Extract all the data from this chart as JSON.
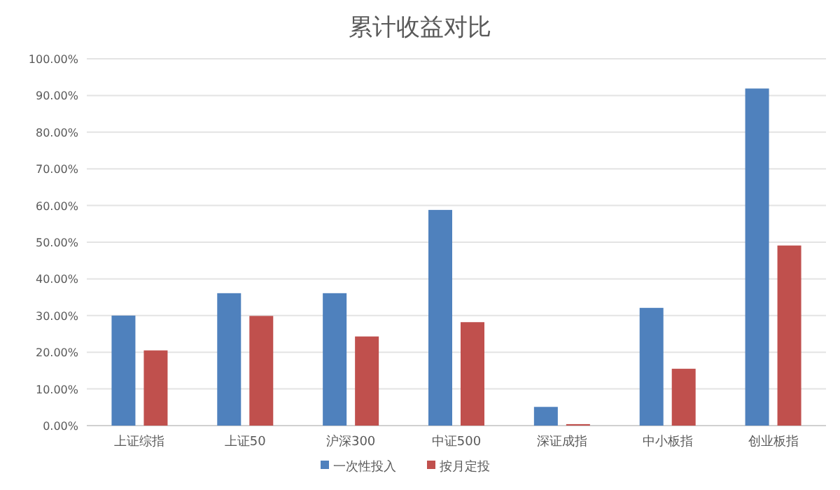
{
  "chart_data": {
    "type": "bar",
    "title": "累计收益对比",
    "categories": [
      "上证综指",
      "上证50",
      "沪深300",
      "中证500",
      "深证成指",
      "中小板指",
      "创业板指"
    ],
    "series": [
      {
        "name": "一次性投入",
        "color": "#4f81bd",
        "values": [
          30,
          36.1,
          36.1,
          58.8,
          5.1,
          32.1,
          91.9
        ]
      },
      {
        "name": "按月定投",
        "color": "#c0504d",
        "values": [
          20.5,
          29.9,
          24.3,
          28.2,
          0.4,
          15.5,
          49.1
        ]
      }
    ],
    "ylim": [
      0,
      100
    ],
    "yticks": [
      {
        "value": 0,
        "label": "0.00%"
      },
      {
        "value": 10,
        "label": "10.00%"
      },
      {
        "value": 20,
        "label": "20.00%"
      },
      {
        "value": 30,
        "label": "30.00%"
      },
      {
        "value": 40,
        "label": "40.00%"
      },
      {
        "value": 50,
        "label": "50.00%"
      },
      {
        "value": 60,
        "label": "60.00%"
      },
      {
        "value": 70,
        "label": "70.00%"
      },
      {
        "value": 80,
        "label": "80.00%"
      },
      {
        "value": 90,
        "label": "90.00%"
      },
      {
        "value": 100,
        "label": "100.00%"
      }
    ],
    "grid": "y",
    "legend": "bottom"
  }
}
